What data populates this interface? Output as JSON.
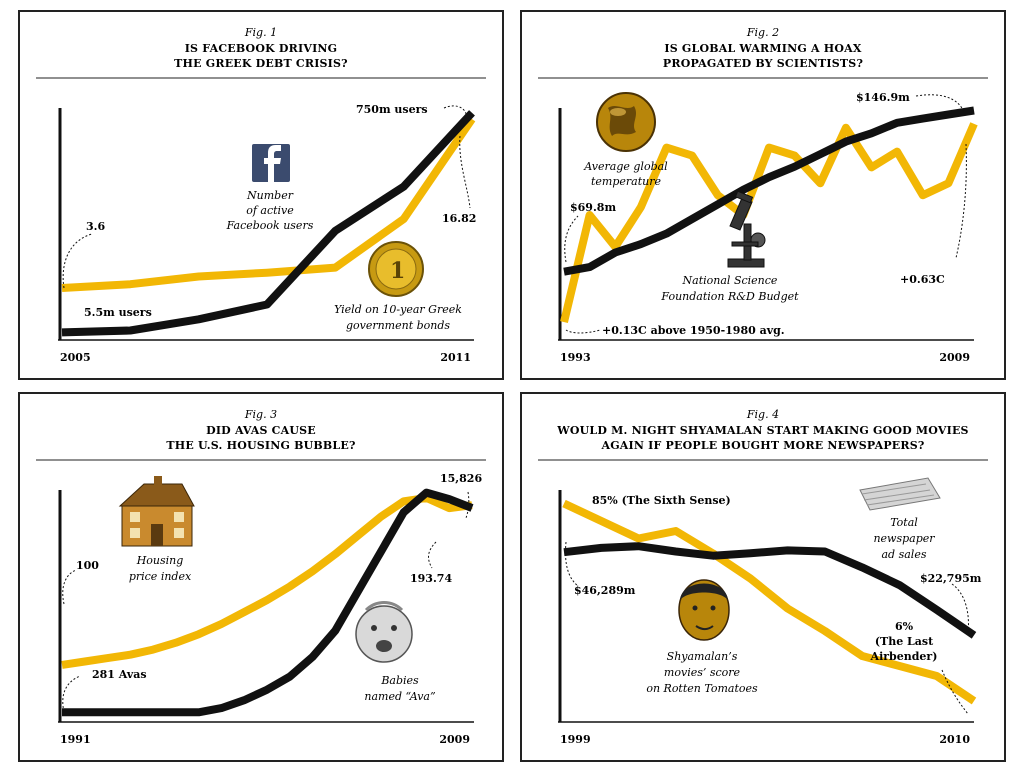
{
  "colors": {
    "gold": "#F2B705",
    "black": "#111111",
    "frame": "#222222"
  },
  "figures": [
    {
      "fig": "Fig. 1",
      "title_line1": "IS FACEBOOK DRIVING",
      "title_line2": "THE GREEK DEBT CRISIS?",
      "x_start": "2005",
      "x_end": "2011",
      "icon": "facebook-icon",
      "icon2": "euro-coin-icon",
      "black_label": "Number of active Facebook users",
      "black_caption": [
        "Number",
        "of active",
        "Facebook users"
      ],
      "gold_caption": [
        "Yield on 10-year Greek",
        "government bonds"
      ],
      "annotations": {
        "black_start": "5.5m users",
        "black_end": "750m users",
        "gold_start": "3.6",
        "gold_end": "16.82"
      }
    },
    {
      "fig": "Fig. 2",
      "title_line1": "IS GLOBAL WARMING A HOAX",
      "title_line2": "PROPAGATED BY SCIENTISTS?",
      "x_start": "1993",
      "x_end": "2009",
      "icon": "globe-icon",
      "icon2": "microscope-icon",
      "gold_caption": [
        "Average global",
        "temperature"
      ],
      "black_caption": [
        "National Science",
        "Foundation R&D Budget"
      ],
      "annotations": {
        "black_start": "$69.8m",
        "black_end": "$146.9m",
        "gold_start": "+0.13C above 1950-1980 avg.",
        "gold_end": "+0.63C"
      }
    },
    {
      "fig": "Fig. 3",
      "title_line1": "DID AVAS CAUSE",
      "title_line2": "THE U.S. HOUSING BUBBLE?",
      "x_start": "1991",
      "x_end": "2009",
      "icon": "house-icon",
      "icon2": "baby-icon",
      "gold_caption": [
        "Housing",
        "price index"
      ],
      "black_caption": [
        "Babies",
        "named “Ava”"
      ],
      "annotations": {
        "black_start": "281 Avas",
        "black_end": "15,826",
        "gold_start": "100",
        "gold_end": "193.74"
      }
    },
    {
      "fig": "Fig. 4",
      "title_line1": "WOULD M. NIGHT SHYAMALAN START MAKING GOOD MOVIES",
      "title_line2": "AGAIN IF PEOPLE BOUGHT MORE NEWSPAPERS?",
      "x_start": "1999",
      "x_end": "2010",
      "icon": "newspaper-icon",
      "icon2": "face-icon",
      "black_caption": [
        "Total",
        "newspaper",
        "ad sales"
      ],
      "gold_caption": [
        "Shyamalan’s",
        "movies’ score",
        "on Rotten Tomatoes"
      ],
      "annotations": {
        "black_start": "$46,289m",
        "black_end": "$22,795m",
        "gold_start": "85% (The Sixth Sense)",
        "gold_end_line1": "6%",
        "gold_end_line2": "(The Last",
        "gold_end_line3": "Airbender)"
      }
    }
  ],
  "chart_data": [
    {
      "type": "line",
      "title": "IS FACEBOOK DRIVING THE GREEK DEBT CRISIS?",
      "x": [
        2005,
        2006,
        2007,
        2008,
        2009,
        2010,
        2011
      ],
      "series": [
        {
          "name": "Yield on 10-year Greek government bonds",
          "color": "gold",
          "values": [
            3.6,
            3.9,
            4.5,
            4.8,
            5.2,
            9.0,
            16.82
          ],
          "ylim": [
            0,
            18
          ]
        },
        {
          "name": "Number of active Facebook users",
          "color": "black",
          "values": [
            5.5,
            12,
            50,
            100,
            350,
            500,
            750
          ],
          "ylim": [
            0,
            780
          ]
        }
      ]
    },
    {
      "type": "line",
      "title": "IS GLOBAL WARMING A HOAX PROPAGATED BY SCIENTISTS?",
      "x": [
        1993,
        1994,
        1995,
        1996,
        1997,
        1998,
        1999,
        2000,
        2001,
        2002,
        2003,
        2004,
        2005,
        2006,
        2007,
        2008,
        2009
      ],
      "series": [
        {
          "name": "Average global temperature",
          "color": "gold",
          "values": [
            0.13,
            0.4,
            0.32,
            0.42,
            0.57,
            0.55,
            0.45,
            0.4,
            0.57,
            0.55,
            0.48,
            0.62,
            0.52,
            0.56,
            0.45,
            0.48,
            0.63
          ],
          "ylim": [
            0.1,
            0.68
          ]
        },
        {
          "name": "National Science Foundation R&D Budget",
          "color": "black",
          "values": [
            69.8,
            72,
            79,
            83,
            88,
            95,
            102,
            109,
            115,
            120,
            126,
            132,
            136,
            141,
            143,
            145,
            146.9
          ],
          "ylim": [
            40,
            150
          ]
        }
      ]
    },
    {
      "type": "line",
      "title": "DID AVAS CAUSE THE U.S. HOUSING BUBBLE?",
      "x": [
        1991,
        1992,
        1993,
        1994,
        1995,
        1996,
        1997,
        1998,
        1999,
        2000,
        2001,
        2002,
        2003,
        2004,
        2005,
        2006,
        2007,
        2008,
        2009
      ],
      "series": [
        {
          "name": "Housing price index",
          "color": "gold",
          "values": [
            100,
            102,
            104,
            106,
            109,
            113,
            118,
            124,
            131,
            138,
            146,
            155,
            165,
            176,
            187,
            196,
            198,
            192,
            193.74
          ],
          "ylim": [
            70,
            205
          ]
        },
        {
          "name": "Babies named “Ava”",
          "color": "black",
          "values": [
            281,
            281,
            281,
            281,
            281,
            281,
            281,
            600,
            1200,
            2000,
            3000,
            4500,
            6500,
            9500,
            12500,
            15500,
            17000,
            16500,
            15826
          ],
          "ylim": [
            0,
            17500
          ]
        }
      ]
    },
    {
      "type": "line",
      "title": "WOULD M. NIGHT SHYAMALAN START MAKING GOOD MOVIES AGAIN IF PEOPLE BOUGHT MORE NEWSPAPERS?",
      "x": [
        1999,
        2000,
        2001,
        2002,
        2003,
        2004,
        2005,
        2006,
        2007,
        2008,
        2009,
        2010
      ],
      "series": [
        {
          "name": "Shyamalan’s movies’ score on Rotten Tomatoes",
          "color": "gold",
          "values": [
            85,
            78,
            71,
            74,
            65,
            55,
            43,
            34,
            24,
            20,
            16,
            6
          ],
          "ylim": [
            0,
            92
          ]
        },
        {
          "name": "Total newspaper ad sales",
          "color": "black",
          "values": [
            46289,
            47500,
            48000,
            46500,
            45300,
            46000,
            46800,
            46500,
            42000,
            37000,
            30000,
            22795
          ],
          "ylim": [
            0,
            65000
          ]
        }
      ]
    }
  ]
}
